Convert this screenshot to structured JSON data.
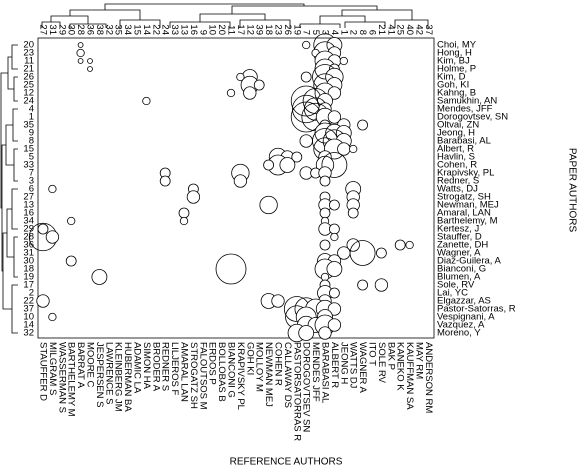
{
  "chart_data": {
    "type": "bubble",
    "x_label": "REFERENCE AUTHORS",
    "y_label": "PAPER AUTHORS",
    "paper_author_ids": [
      "20",
      "23",
      "11",
      "21",
      "26",
      "25",
      "12",
      "24",
      "4",
      "1",
      "35",
      "9",
      "8",
      "15",
      "5",
      "33",
      "7",
      "3",
      "6",
      "27",
      "13",
      "16",
      "34",
      "29",
      "28",
      "36",
      "31",
      "30",
      "18",
      "19",
      "17",
      "2",
      "22",
      "37",
      "10",
      "14",
      "32"
    ],
    "paper_authors": [
      "Choi, MY",
      "Hong, H",
      "Kim, BJ",
      "Holme, P",
      "Kim, D",
      "Goh, KI",
      "Kahng, B",
      "Samukhin, AN",
      "Mendes, JFF",
      "Dorogovtsev, SN",
      "Oltvai, ZN",
      "Jeong, H",
      "Barabasi, AL",
      "Albert, R",
      "Havlin, S",
      "Cohen, R",
      "Krapivsky, PL",
      "Redner, S",
      "Watts, DJ",
      "Strogatz, SH",
      "Newman, MEJ",
      "Amaral, LAN",
      "Barthelemy, M",
      "Kertesz, J",
      "Stauffer, D",
      "Zanette, DH",
      "Wagner, A",
      "Diaz-Guilera, A",
      "Bianconi, G",
      "Blumen, A",
      "Sole, RV",
      "Lai, YC",
      "Elgazzar, AS",
      "Pastor-Satorras, R",
      "Vespignani, A",
      "Vazquez, A",
      "Moreno, Y"
    ],
    "reference_author_ids": [
      "27",
      "31",
      "29",
      "30",
      "28",
      "36",
      "38",
      "32",
      "35",
      "34",
      "15",
      "14",
      "22",
      "24",
      "33",
      "13",
      "16",
      "9",
      "10",
      "20",
      "11",
      "17",
      "12",
      "39",
      "18",
      "23",
      "26",
      "19",
      "7",
      "5",
      "3",
      "4",
      "1",
      "2",
      "8",
      "6",
      "21",
      "41",
      "25",
      "40",
      "42",
      "37"
    ],
    "reference_authors": [
      "STAUFFER D",
      "MILGRAM S",
      "WASSERMAN S",
      "BARTHELEMY M",
      "BARRAT A",
      "MOORE C",
      "JESPERSEN S",
      "LAWRENCE S",
      "KLEINBERG JM",
      "HUBERMAN BA",
      "ADAMIC LA",
      "SIMON HA",
      "BRODER A",
      "REDNER S",
      "LILJEROS F",
      "AMARAL LAN",
      "STROGATZ SH",
      "FALOUTSOS M",
      "ERDOS P",
      "BOLLOBAS B",
      "BIANCONI G",
      "KRAPIVSKY PL",
      "GOH KI",
      "MOLLOY M",
      "NEWMAN MEJ",
      "COHEN R",
      "CALLAWAY DS",
      "PASTORSATORRAS R",
      "DOROGOVTSEV SN",
      "MENDES JFF",
      "BARABASI AL",
      "ALBERT R",
      "JEONG H",
      "WATTS DJ",
      "WAGNER A",
      "ITO T",
      "SOLE RV",
      "BAK P",
      "KANEKO K",
      "KAUFFMAN SA",
      "MAY RM",
      "ANDERSON RM"
    ],
    "bubbles": [
      [
        0,
        4,
        2
      ],
      [
        0,
        30,
        9
      ],
      [
        0,
        31,
        6
      ],
      [
        0,
        28,
        3
      ],
      [
        1,
        4,
        3
      ],
      [
        1,
        30,
        9
      ],
      [
        1,
        31,
        5
      ],
      [
        1,
        29,
        3
      ],
      [
        2,
        4,
        2
      ],
      [
        2,
        5,
        2
      ],
      [
        2,
        30,
        8
      ],
      [
        2,
        31,
        5
      ],
      [
        2,
        32,
        3
      ],
      [
        3,
        5,
        2
      ],
      [
        3,
        30,
        8
      ],
      [
        3,
        31,
        4
      ],
      [
        4,
        22,
        6
      ],
      [
        4,
        21,
        3
      ],
      [
        4,
        30,
        10
      ],
      [
        4,
        31,
        7
      ],
      [
        4,
        28,
        4
      ],
      [
        5,
        22,
        7
      ],
      [
        5,
        23,
        4
      ],
      [
        5,
        30,
        9
      ],
      [
        5,
        31,
        6
      ],
      [
        6,
        22,
        5
      ],
      [
        6,
        20,
        3
      ],
      [
        6,
        30,
        8
      ],
      [
        6,
        31,
        5
      ],
      [
        7,
        28,
        12
      ],
      [
        7,
        29,
        10
      ],
      [
        7,
        30,
        6
      ],
      [
        7,
        11,
        3
      ],
      [
        8,
        28,
        11
      ],
      [
        8,
        29,
        9
      ],
      [
        8,
        30,
        5
      ],
      [
        9,
        28,
        12
      ],
      [
        9,
        29,
        11
      ],
      [
        9,
        30,
        7
      ],
      [
        9,
        31,
        5
      ],
      [
        10,
        34,
        4
      ],
      [
        10,
        32,
        5
      ],
      [
        10,
        30,
        4
      ],
      [
        11,
        30,
        8
      ],
      [
        11,
        31,
        7
      ],
      [
        11,
        32,
        6
      ],
      [
        12,
        30,
        10
      ],
      [
        12,
        31,
        9
      ],
      [
        12,
        32,
        6
      ],
      [
        12,
        28,
        5
      ],
      [
        13,
        30,
        9
      ],
      [
        13,
        31,
        8
      ],
      [
        13,
        32,
        5
      ],
      [
        13,
        33,
        3
      ],
      [
        14,
        25,
        7
      ],
      [
        14,
        26,
        5
      ],
      [
        14,
        27,
        4
      ],
      [
        14,
        30,
        5
      ],
      [
        15,
        25,
        8
      ],
      [
        15,
        26,
        6
      ],
      [
        15,
        30,
        7
      ],
      [
        15,
        31,
        10
      ],
      [
        15,
        24,
        4
      ],
      [
        16,
        21,
        7
      ],
      [
        16,
        13,
        4
      ],
      [
        16,
        28,
        5
      ],
      [
        16,
        29,
        4
      ],
      [
        16,
        30,
        5
      ],
      [
        17,
        13,
        4
      ],
      [
        17,
        21,
        5
      ],
      [
        17,
        30,
        4
      ],
      [
        18,
        33,
        6
      ],
      [
        18,
        16,
        4
      ],
      [
        18,
        1,
        3
      ],
      [
        19,
        16,
        5
      ],
      [
        19,
        33,
        5
      ],
      [
        19,
        30,
        4
      ],
      [
        20,
        24,
        7
      ],
      [
        20,
        33,
        5
      ],
      [
        20,
        30,
        5
      ],
      [
        20,
        31,
        4
      ],
      [
        21,
        15,
        4
      ],
      [
        21,
        33,
        4
      ],
      [
        21,
        30,
        4
      ],
      [
        22,
        3,
        3
      ],
      [
        22,
        15,
        3
      ],
      [
        22,
        30,
        3
      ],
      [
        23,
        0,
        4
      ],
      [
        23,
        30,
        5
      ],
      [
        23,
        31,
        4
      ],
      [
        24,
        0,
        11
      ],
      [
        24,
        1,
        5
      ],
      [
        24,
        31,
        3
      ],
      [
        25,
        38,
        4
      ],
      [
        25,
        39,
        3
      ],
      [
        25,
        33,
        5
      ],
      [
        25,
        30,
        4
      ],
      [
        26,
        34,
        10
      ],
      [
        26,
        36,
        4
      ],
      [
        26,
        32,
        5
      ],
      [
        27,
        3,
        4
      ],
      [
        27,
        30,
        6
      ],
      [
        27,
        31,
        5
      ],
      [
        28,
        20,
        12
      ],
      [
        28,
        30,
        8
      ],
      [
        28,
        31,
        6
      ],
      [
        29,
        6,
        6
      ],
      [
        29,
        30,
        3
      ],
      [
        30,
        36,
        5
      ],
      [
        30,
        34,
        4
      ],
      [
        30,
        30,
        4
      ],
      [
        31,
        30,
        6
      ],
      [
        31,
        31,
        4
      ],
      [
        32,
        0,
        5
      ],
      [
        32,
        24,
        6
      ],
      [
        32,
        25,
        5
      ],
      [
        32,
        30,
        5
      ],
      [
        33,
        27,
        10
      ],
      [
        33,
        28,
        9
      ],
      [
        33,
        29,
        8
      ],
      [
        33,
        30,
        7
      ],
      [
        33,
        31,
        5
      ],
      [
        34,
        27,
        9
      ],
      [
        34,
        28,
        8
      ],
      [
        34,
        30,
        6
      ],
      [
        34,
        1,
        3
      ],
      [
        35,
        28,
        7
      ],
      [
        35,
        29,
        6
      ],
      [
        35,
        30,
        8
      ],
      [
        35,
        31,
        5
      ],
      [
        36,
        27,
        7
      ],
      [
        36,
        28,
        6
      ],
      [
        36,
        30,
        5
      ]
    ]
  }
}
